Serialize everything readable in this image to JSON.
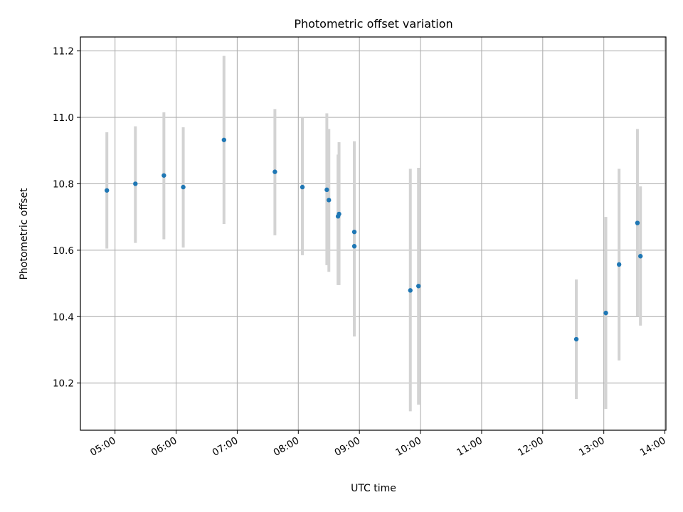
{
  "chart_data": {
    "type": "scatter",
    "title": "Photometric offset variation",
    "xlabel": "UTC time",
    "ylabel": "Photometric offset",
    "x_ticks": [
      "05:00",
      "06:00",
      "07:00",
      "08:00",
      "09:00",
      "10:00",
      "11:00",
      "12:00",
      "13:00",
      "14:00"
    ],
    "y_ticks": [
      "10.2",
      "10.4",
      "10.6",
      "10.8",
      "11.0",
      "11.2"
    ],
    "xlim": [
      "04:26",
      "14:01"
    ],
    "ylim": [
      10.058,
      11.242
    ],
    "grid": true,
    "points": [
      {
        "x": "04:52",
        "y": 10.78,
        "ylow": 10.605,
        "yhigh": 10.955
      },
      {
        "x": "05:20",
        "y": 10.8,
        "ylow": 10.622,
        "yhigh": 10.973
      },
      {
        "x": "05:48",
        "y": 10.825,
        "ylow": 10.633,
        "yhigh": 11.015
      },
      {
        "x": "06:07",
        "y": 10.79,
        "ylow": 10.608,
        "yhigh": 10.97
      },
      {
        "x": "06:47",
        "y": 10.932,
        "ylow": 10.679,
        "yhigh": 11.185
      },
      {
        "x": "07:37",
        "y": 10.836,
        "ylow": 10.645,
        "yhigh": 11.025
      },
      {
        "x": "08:04",
        "y": 10.79,
        "ylow": 10.585,
        "yhigh": 10.998
      },
      {
        "x": "08:28",
        "y": 10.782,
        "ylow": 10.555,
        "yhigh": 11.012
      },
      {
        "x": "08:30",
        "y": 10.751,
        "ylow": 10.535,
        "yhigh": 10.965
      },
      {
        "x": "08:39",
        "y": 10.702,
        "ylow": 10.495,
        "yhigh": 10.888
      },
      {
        "x": "08:40",
        "y": 10.709,
        "ylow": 10.495,
        "yhigh": 10.925
      },
      {
        "x": "08:55",
        "y": 10.655,
        "ylow": 10.385,
        "yhigh": 10.928
      },
      {
        "x": "08:55",
        "y": 10.612,
        "ylow": 10.34,
        "yhigh": 10.905
      },
      {
        "x": "09:50",
        "y": 10.479,
        "ylow": 10.115,
        "yhigh": 10.845
      },
      {
        "x": "09:58",
        "y": 10.492,
        "ylow": 10.135,
        "yhigh": 10.848
      },
      {
        "x": "12:33",
        "y": 10.332,
        "ylow": 10.152,
        "yhigh": 10.512
      },
      {
        "x": "13:02",
        "y": 10.411,
        "ylow": 10.122,
        "yhigh": 10.7
      },
      {
        "x": "13:15",
        "y": 10.557,
        "ylow": 10.268,
        "yhigh": 10.845
      },
      {
        "x": "13:33",
        "y": 10.682,
        "ylow": 10.4,
        "yhigh": 10.965
      },
      {
        "x": "13:36",
        "y": 10.582,
        "ylow": 10.373,
        "yhigh": 10.792
      }
    ],
    "colors": {
      "marker": "#1f77b4",
      "errorbar": "#d3d3d3",
      "grid": "#b0b0b0",
      "axes": "#000000"
    }
  }
}
